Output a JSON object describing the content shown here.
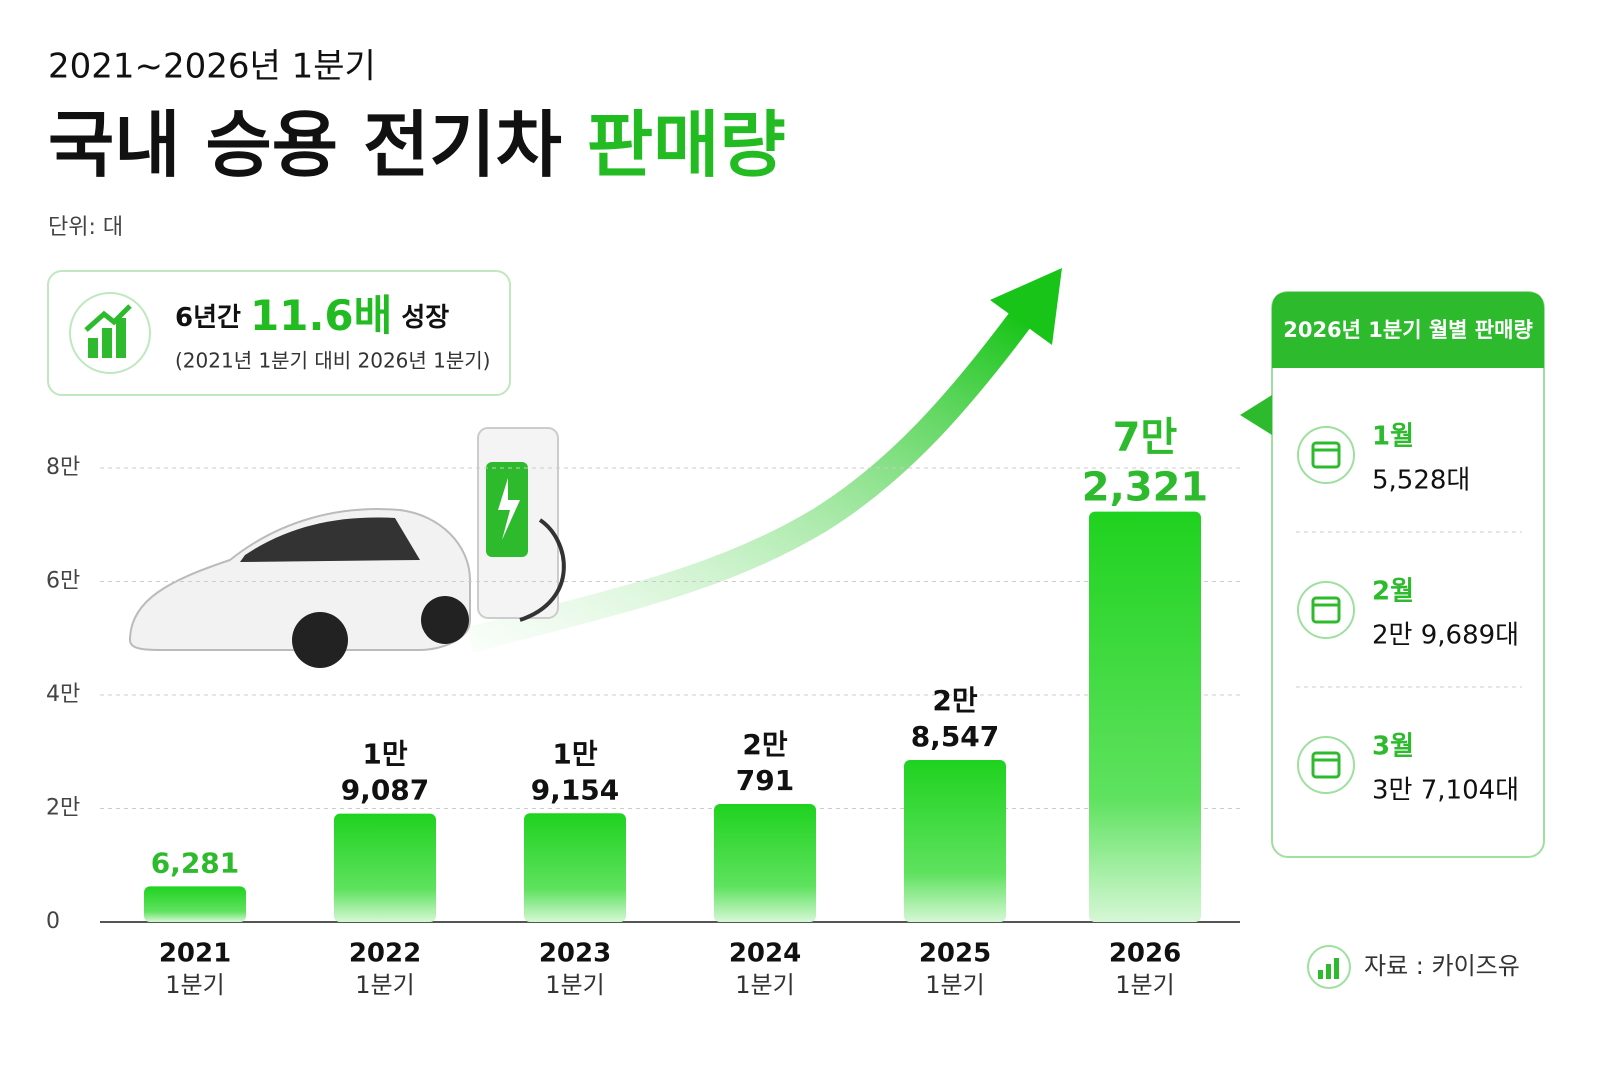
{
  "chart_data": {
    "type": "bar",
    "subtitle": "2021~2026년 1분기",
    "title": "국내 승용 전기차",
    "title_highlight": "판매량",
    "unit": "단위: 대",
    "callout": {
      "prefix": "6년간",
      "highlight": "11.6배",
      "suffix": "성장",
      "note": "(2021년 1분기 대비 2026년 1분기)"
    },
    "categories": [
      "2021",
      "2022",
      "2023",
      "2024",
      "2025",
      "2026"
    ],
    "category_sublabels": [
      "1분기",
      "1분기",
      "1분기",
      "1분기",
      "1분기",
      "1분기"
    ],
    "values": [
      6281,
      19087,
      19154,
      20791,
      28547,
      72321
    ],
    "value_labels": [
      [
        "6,281"
      ],
      [
        "1만",
        "9,087"
      ],
      [
        "1만",
        "9,154"
      ],
      [
        "2만",
        "791"
      ],
      [
        "2만",
        "8,547"
      ],
      [
        "7만",
        "2,321"
      ]
    ],
    "value_label_colors": [
      "#2dbb2d",
      "#111111",
      "#111111",
      "#111111",
      "#111111",
      "#2dbb2d"
    ],
    "color": "#22d022",
    "ylim": [
      0,
      80000
    ],
    "yticks": [
      0,
      {
        "value": 20000,
        "label": "2만"
      },
      {
        "value": 40000,
        "label": "4만"
      },
      {
        "value": 60000,
        "label": "6만"
      },
      {
        "value": 80000,
        "label": "8만"
      }
    ],
    "grid": true,
    "monthly": {
      "title": "2026년 1분기 월별 판매량",
      "items": [
        {
          "month": "1월",
          "label": "5,528대"
        },
        {
          "month": "2월",
          "label": "2만 9,689대"
        },
        {
          "month": "3월",
          "label": "3만 7,104대"
        }
      ]
    },
    "source": "자료 : 카이즈유"
  }
}
